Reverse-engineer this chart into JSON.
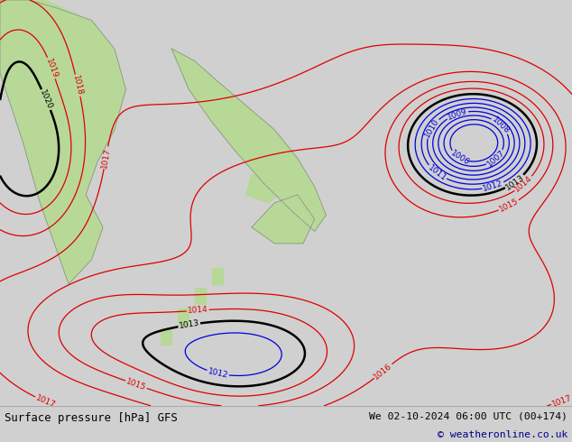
{
  "title_left": "Surface pressure [hPa] GFS",
  "title_right": "We 02-10-2024 06:00 UTC (00+174)",
  "copyright": "© weatheronline.co.uk",
  "figsize": [
    6.34,
    4.9
  ],
  "dpi": 100,
  "ocean_color": "#c8dff0",
  "land_color": "#b8d898",
  "land_outline": "#888888",
  "footer_color": "#d0d0d0",
  "footer_text_color": "#000000",
  "footer_copy_color": "#00008b",
  "levels_black": [
    1013,
    1020
  ],
  "levels_red": [
    1014,
    1015,
    1016,
    1017,
    1018,
    1019
  ],
  "levels_blue": [
    1006,
    1007,
    1008,
    1009,
    1010,
    1011,
    1012
  ],
  "color_black": "#000000",
  "color_red": "#dd0000",
  "color_blue": "#0000dd"
}
